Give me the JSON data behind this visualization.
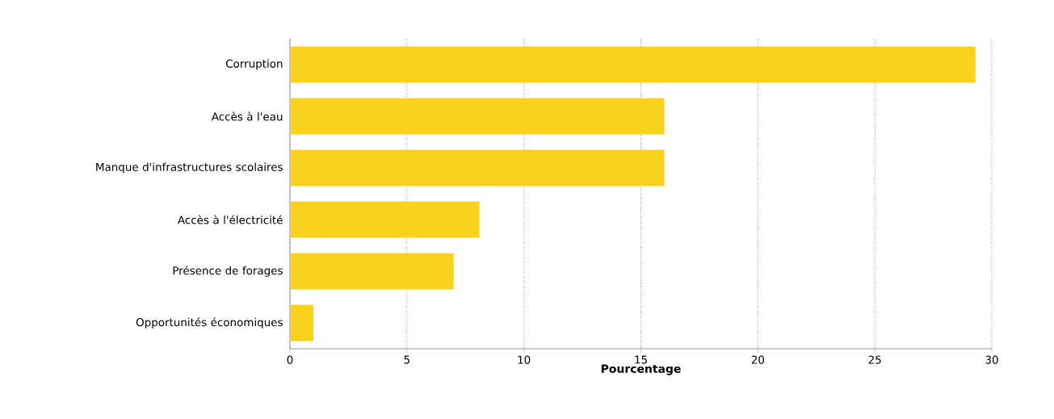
{
  "chart_data": {
    "type": "bar",
    "orientation": "horizontal",
    "xlabel": "Pourcentage",
    "categories": [
      "Corruption",
      "Accès à l'eau",
      "Manque d'infrastructures scolaires",
      "Accès à l'électricité",
      "Présence de forages",
      "Opportunités économiques"
    ],
    "values": [
      29.3,
      16.0,
      16.0,
      8.1,
      7.0,
      1.0
    ],
    "color": "#fad11c",
    "xlim": [
      0,
      30
    ],
    "xticks": [
      0,
      5,
      10,
      15,
      20,
      25,
      30
    ],
    "grid": "x"
  }
}
